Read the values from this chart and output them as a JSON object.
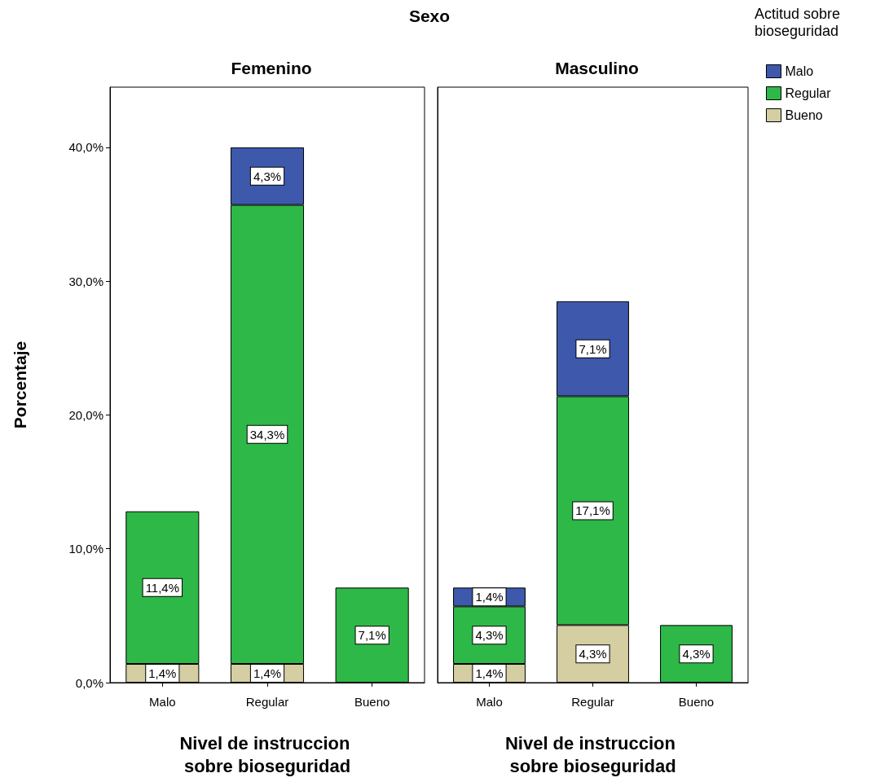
{
  "chart_data": [
    {
      "type": "bar",
      "title": "Femenino",
      "annotations": [
        "Sexo"
      ],
      "xlabel": "Nivel de instruccion sobre bioseguridad",
      "ylabel": "Porcentaje",
      "categories": [
        "Malo",
        "Regular",
        "Bueno"
      ],
      "stacked": true,
      "ylim": [
        0,
        44.5
      ],
      "yticks": [
        {
          "value": 0,
          "label": "0,0%"
        },
        {
          "value": 10,
          "label": "10,0%"
        },
        {
          "value": 20,
          "label": "20,0%"
        },
        {
          "value": 30,
          "label": "30,0%"
        },
        {
          "value": 40,
          "label": "40,0%"
        }
      ],
      "grid": false,
      "legend": false,
      "series": [
        {
          "color": "#d5cea3",
          "values": [
            1.4,
            1.4,
            null
          ],
          "value_labels": [
            "1,4%",
            "1,4%",
            null
          ]
        },
        {
          "color": "#2eb848",
          "values": [
            11.4,
            34.3,
            7.1
          ],
          "value_labels": [
            "11,4%",
            "34,3%",
            "7,1%"
          ]
        },
        {
          "color": "#3e58ac",
          "values": [
            null,
            4.3,
            null
          ],
          "value_labels": [
            null,
            "4,3%",
            null
          ]
        }
      ]
    },
    {
      "type": "bar",
      "title": "Masculino",
      "xlabel": "Nivel de instruccion sobre bioseguridad",
      "legend_title": "Actitud sobre bioseguridad",
      "categories": [
        "Malo",
        "Regular",
        "Bueno"
      ],
      "stacked": true,
      "ylim": [
        0,
        44.5
      ],
      "tick_labels": "x",
      "grid": false,
      "legend": "right",
      "series": [
        {
          "name": "Bueno",
          "color": "#d5cea3",
          "values": [
            1.4,
            4.3,
            null
          ],
          "value_labels": [
            "1,4%",
            "4,3%",
            null
          ]
        },
        {
          "name": "Regular",
          "color": "#2eb848",
          "values": [
            4.3,
            17.1,
            4.3
          ],
          "value_labels": [
            "4,3%",
            "17,1%",
            "4,3%"
          ]
        },
        {
          "name": "Malo",
          "color": "#3e58ac",
          "values": [
            1.4,
            7.1,
            null
          ],
          "value_labels": [
            "1,4%",
            "7,1%",
            null
          ]
        }
      ]
    }
  ]
}
